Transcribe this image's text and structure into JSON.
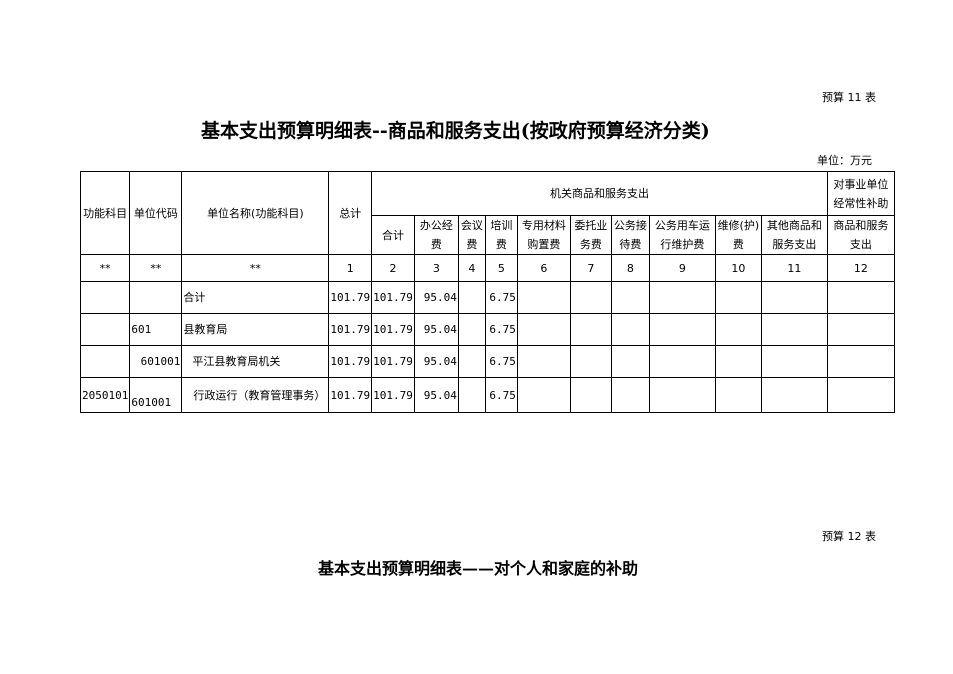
{
  "table11": {
    "label": "预算 11 表",
    "title": "基本支出预算明细表--商品和服务支出(按政府预算经济分类)",
    "unit": "单位：万元",
    "headers": {
      "func": "功能科目",
      "code": "单位代码",
      "name": "单位名称(功能科目)",
      "total": "总计",
      "group1": "机关商品和服务支出",
      "group2": "对事业单位经常性补助",
      "sub": [
        "合计",
        "办公经费",
        "会议费",
        "培训费",
        "专用材料购置费",
        "委托业务费",
        "公务接待费",
        "公务用车运行维护费",
        "维修(护)费",
        "其他商品和服务支出",
        "商品和服务支出"
      ]
    },
    "index_row": [
      "**",
      "**",
      "**",
      "1",
      "2",
      "3",
      "4",
      "5",
      "6",
      "7",
      "8",
      "9",
      "10",
      "11",
      "12"
    ],
    "rows": [
      {
        "func": "",
        "code": "",
        "name": "合计",
        "total": "101.79",
        "sum": "101.79",
        "office": "95.04",
        "meeting": "",
        "training": "6.75"
      },
      {
        "func": "",
        "code": "601",
        "name": "县教育局",
        "total": "101.79",
        "sum": "101.79",
        "office": "95.04",
        "meeting": "",
        "training": "6.75"
      },
      {
        "func": "",
        "code": "601001",
        "name": "平江县教育局机关",
        "total": "101.79",
        "sum": "101.79",
        "office": "95.04",
        "meeting": "",
        "training": "6.75"
      },
      {
        "func": "2050101",
        "code": "601001",
        "name": "行政运行（教育管理事务）",
        "total": "101.79",
        "sum": "101.79",
        "office": "95.04",
        "meeting": "",
        "training": "6.75"
      }
    ]
  },
  "table12": {
    "label": "预算 12 表",
    "title": "基本支出预算明细表——对个人和家庭的补助"
  }
}
